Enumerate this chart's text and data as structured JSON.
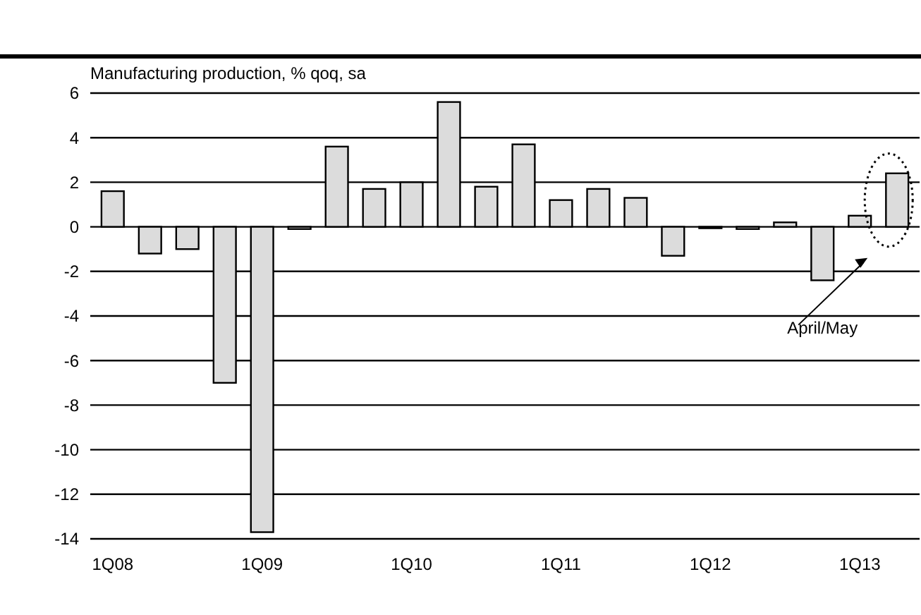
{
  "chart_data": {
    "type": "bar",
    "title": "Manufacturing production, % qoq, sa",
    "categories": [
      "1Q08",
      null,
      null,
      null,
      "1Q09",
      null,
      null,
      null,
      "1Q10",
      null,
      null,
      null,
      "1Q11",
      null,
      null,
      null,
      "1Q12",
      null,
      null,
      null,
      "1Q13",
      null
    ],
    "values": [
      1.6,
      -1.2,
      -1.0,
      -7.0,
      -13.7,
      -0.1,
      3.6,
      1.7,
      2.0,
      5.6,
      1.8,
      3.7,
      1.2,
      1.7,
      1.3,
      -1.3,
      0,
      -0.1,
      0.2,
      -2.4,
      0.5,
      2.4
    ],
    "color": "#dcdcdc",
    "ylim": [
      -14,
      6
    ],
    "yticks": [
      -14,
      -12,
      -10,
      -8,
      -6,
      -4,
      -2,
      0,
      2,
      4,
      6
    ],
    "grid": "y",
    "annotations": [
      "April/May"
    ]
  }
}
